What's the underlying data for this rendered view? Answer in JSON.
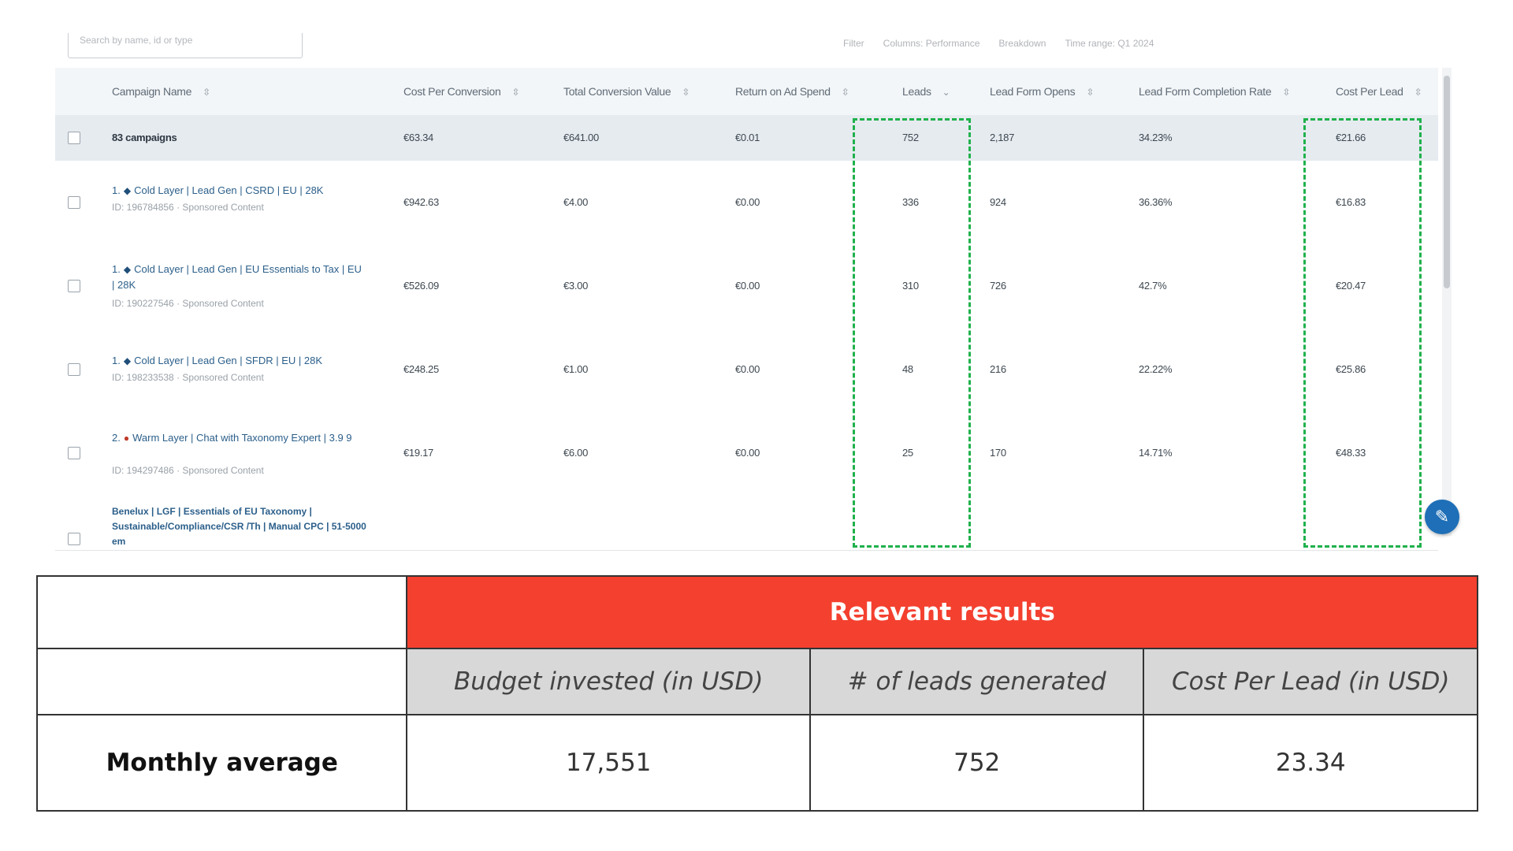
{
  "screenshot": {
    "search": {
      "placeholder": "Search by name, id or type"
    },
    "toolbar_controls": [
      "Filter",
      "Columns: Performance",
      "Breakdown",
      "Time range: Q1 2024"
    ],
    "columns": [
      {
        "label": "Campaign Name"
      },
      {
        "label": "Cost Per Conversion"
      },
      {
        "label": "Total Conversion Value"
      },
      {
        "label": "Return on Ad Spend"
      },
      {
        "label": "Leads"
      },
      {
        "label": "Lead Form Opens"
      },
      {
        "label": "Lead Form Completion Rate"
      },
      {
        "label": "Cost Per Lead"
      }
    ],
    "total_row": {
      "name": "83 campaigns",
      "cost_per_conversion": "€63.34",
      "total_conversion_value": "€641.00",
      "roas": "€0.01",
      "leads": "752",
      "lead_form_opens": "2,187",
      "completion_rate": "34.23%",
      "cost_per_lead": "€21.66"
    },
    "rows": [
      {
        "prefix": "1.",
        "marker": "diamond",
        "name": "Cold Layer | Lead Gen | CSRD | EU | 28K",
        "sub": "ID: 196784856 · Sponsored Content",
        "cost_per_conversion": "€942.63",
        "total_conversion_value": "€4.00",
        "roas": "€0.00",
        "leads": "336",
        "lead_form_opens": "924",
        "completion_rate": "36.36%",
        "cost_per_lead": "€16.83"
      },
      {
        "prefix": "1.",
        "marker": "diamond",
        "name": "Cold Layer | Lead Gen | EU Essentials to Tax | EU | 28K",
        "sub": "ID: 190227546 · Sponsored Content",
        "cost_per_conversion": "€526.09",
        "total_conversion_value": "€3.00",
        "roas": "€0.00",
        "leads": "310",
        "lead_form_opens": "726",
        "completion_rate": "42.7%",
        "cost_per_lead": "€20.47"
      },
      {
        "prefix": "1.",
        "marker": "diamond",
        "name": "Cold Layer | Lead Gen | SFDR | EU | 28K",
        "sub": "ID: 198233538 · Sponsored Content",
        "cost_per_conversion": "€248.25",
        "total_conversion_value": "€1.00",
        "roas": "€0.00",
        "leads": "48",
        "lead_form_opens": "216",
        "completion_rate": "22.22%",
        "cost_per_lead": "€25.86"
      },
      {
        "prefix": "2.",
        "marker": "dot",
        "name": "Warm Layer | Chat with Taxonomy Expert | 3.9 9",
        "sub": "ID: 194297486 · Sponsored Content",
        "cost_per_conversion": "€19.17",
        "total_conversion_value": "€6.00",
        "roas": "€0.00",
        "leads": "25",
        "lead_form_opens": "170",
        "completion_rate": "14.71%",
        "cost_per_lead": "€48.33"
      },
      {
        "prefix": "",
        "marker": "",
        "name": "Benelux | LGF | Essentials of EU Taxonomy | Sustainable/Compliance/CSR /Th | Manual CPC | 51-5000 em",
        "sub": "",
        "cost_per_conversion": "",
        "total_conversion_value": "",
        "roas": "",
        "leads": "",
        "lead_form_opens": "",
        "completion_rate": "",
        "cost_per_lead": ""
      }
    ]
  },
  "results_table": {
    "header": "Relevant results",
    "columns": [
      "Budget invested (in USD)",
      "# of leads generated",
      "Cost Per Lead (in USD)"
    ],
    "row_label": "Monthly average",
    "values": [
      "17,551",
      "752",
      "23.34"
    ]
  },
  "colors": {
    "accent_red": "#f4402f",
    "highlight_green": "#1fb14c",
    "header_gray": "#d8d8d8",
    "link_blue": "#2b5f8a"
  }
}
